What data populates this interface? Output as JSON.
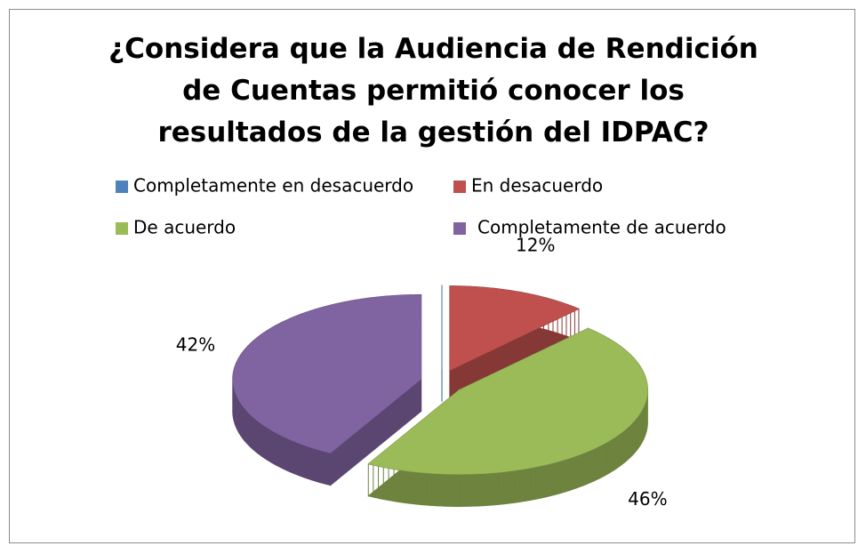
{
  "chart_data": {
    "type": "pie3d",
    "title": "¿Considera que la Audiencia de Rendición de Cuentas permitió conocer los resultados de la gestión del IDPAC?",
    "categories": [
      "Completamente en desacuerdo",
      "En desacuerdo",
      "De acuerdo",
      "Completamente de acuerdo"
    ],
    "values": [
      0,
      12,
      46,
      42
    ],
    "value_labels": [
      null,
      "12%",
      "46%",
      "42%"
    ],
    "colors": [
      "#4f81bd",
      "#c0504d",
      "#9bbb59",
      "#8064a2"
    ],
    "legend": "top"
  }
}
